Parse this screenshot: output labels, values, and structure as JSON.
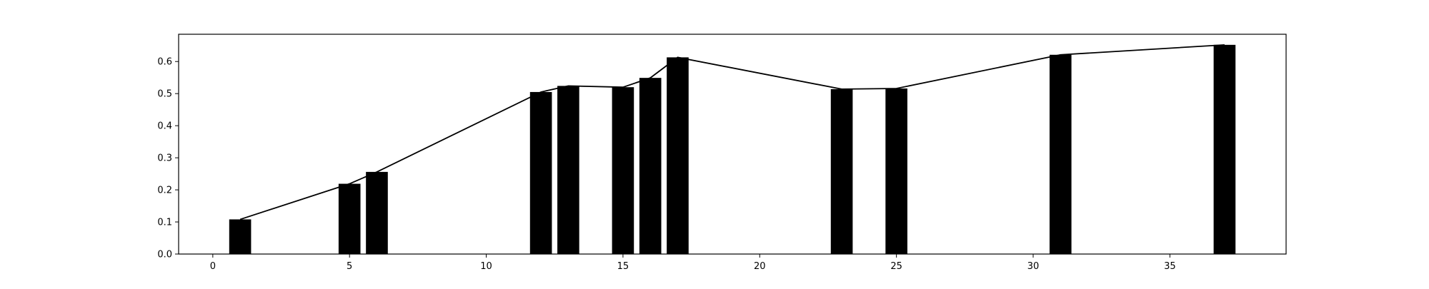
{
  "chart_data": {
    "type": "bar",
    "x": [
      1,
      5,
      6,
      12,
      13,
      15,
      16,
      17,
      23,
      25,
      31,
      37
    ],
    "values": [
      0.108,
      0.219,
      0.256,
      0.505,
      0.524,
      0.52,
      0.549,
      0.613,
      0.514,
      0.516,
      0.621,
      0.652
    ],
    "line_overlay": {
      "x": [
        1,
        5,
        6,
        12,
        13,
        15,
        16,
        17,
        23,
        25,
        31,
        37
      ],
      "values": [
        0.108,
        0.219,
        0.256,
        0.505,
        0.524,
        0.52,
        0.549,
        0.613,
        0.514,
        0.516,
        0.621,
        0.652
      ]
    },
    "title": "",
    "xlabel": "",
    "ylabel": "",
    "xlim": [
      -1.25,
      39.25
    ],
    "ylim": [
      0,
      0.685
    ],
    "xticks": [
      0,
      5,
      10,
      15,
      20,
      25,
      30,
      35
    ],
    "yticks": [
      0.0,
      0.1,
      0.2,
      0.3,
      0.4,
      0.5,
      0.6
    ],
    "xtick_labels": [
      "0",
      "5",
      "10",
      "15",
      "20",
      "25",
      "30",
      "35"
    ],
    "ytick_labels": [
      "0.0",
      "0.1",
      "0.2",
      "0.3",
      "0.4",
      "0.5",
      "0.6"
    ],
    "bar_width": 0.8,
    "grid": false,
    "colors": {
      "bar": "#000000",
      "line": "#000000",
      "axes": "#000000"
    }
  }
}
